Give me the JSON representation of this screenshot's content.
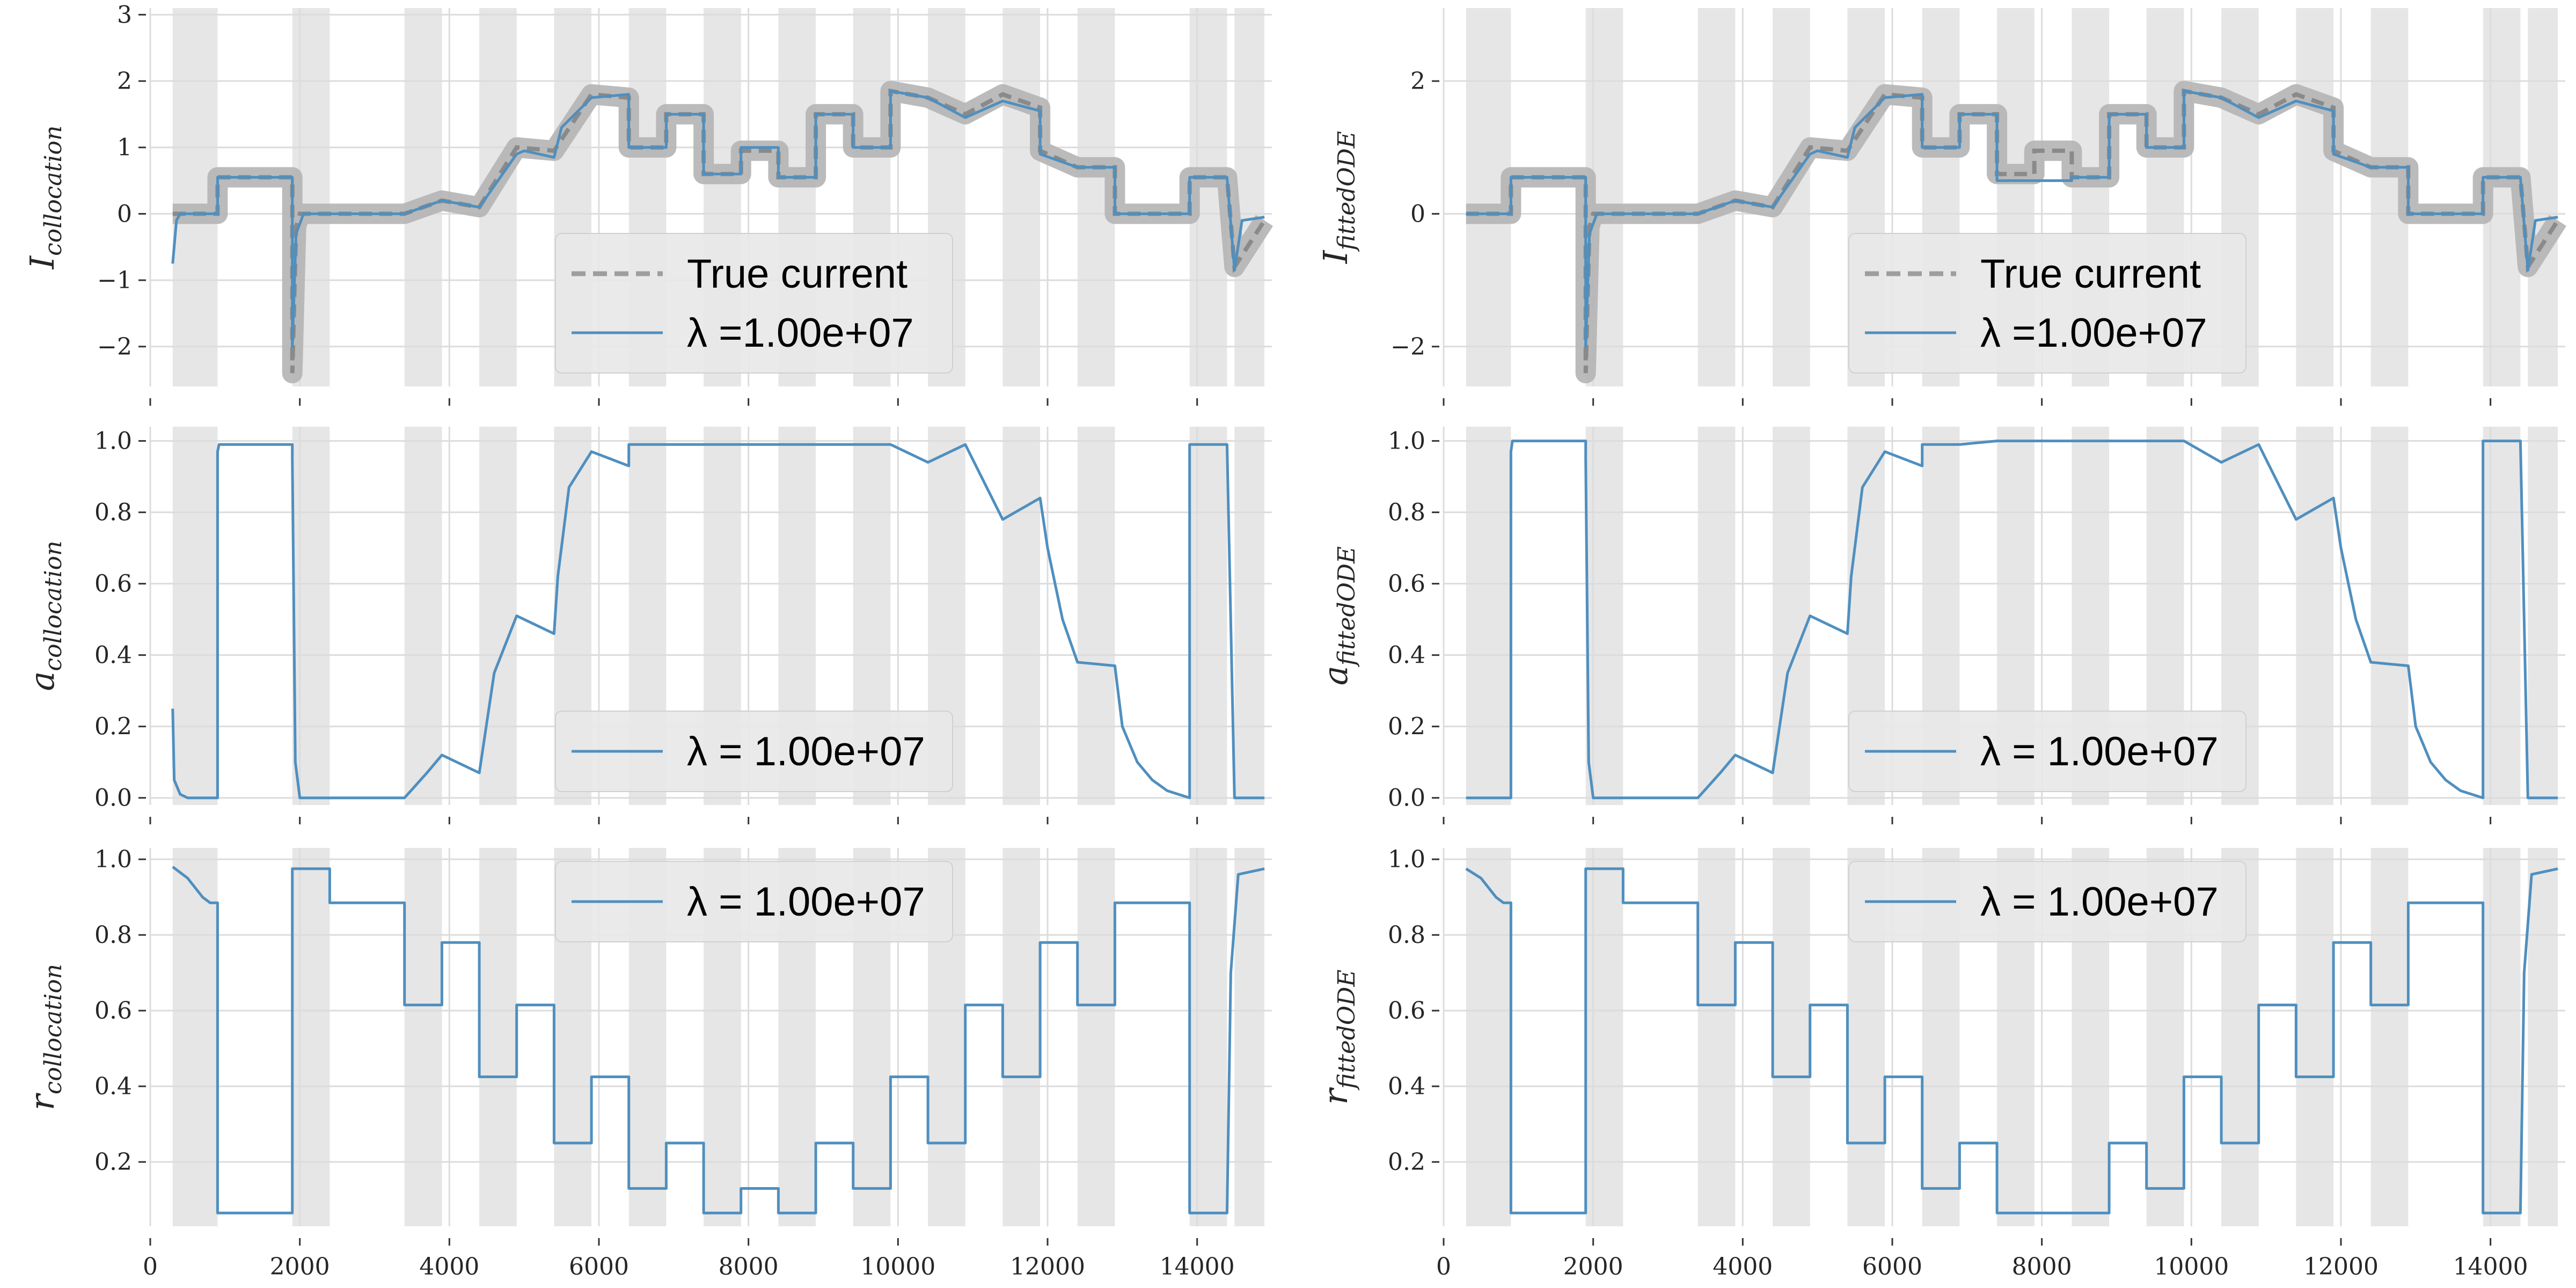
{
  "chart_data": [
    {
      "id": "I_collocation",
      "type": "line",
      "ylabel_base": "I",
      "ylabel_sub": "collocation",
      "xlim": [
        0,
        15000
      ],
      "ylim": [
        -2.6,
        3.1
      ],
      "yticks": [
        -2,
        -1,
        0,
        1,
        2,
        3
      ],
      "ytick_labels": [
        "−2",
        "−1",
        "0",
        "1",
        "2",
        "3"
      ],
      "grid": true,
      "legend": "lower-center",
      "series": [
        {
          "name": "True current",
          "style": "dashed-gray",
          "color": "#9e9e9e",
          "x": [
            300,
            900,
            900,
            1900,
            1900,
            1950,
            2000,
            2400,
            3400,
            3900,
            4400,
            4900,
            5400,
            5900,
            6400,
            6400,
            6900,
            6900,
            7400,
            7400,
            7900,
            7900,
            8400,
            8400,
            8900,
            8900,
            9400,
            9400,
            9900,
            9900,
            10400,
            10900,
            11400,
            11900,
            11900,
            12400,
            12400,
            12900,
            12900,
            13900,
            13900,
            14400,
            14500,
            14900
          ],
          "y": [
            0.0,
            0.0,
            0.55,
            0.55,
            -2.4,
            -0.2,
            0.0,
            0.0,
            0.0,
            0.2,
            0.1,
            1.0,
            0.95,
            1.8,
            1.75,
            1.0,
            1.0,
            1.5,
            1.5,
            0.6,
            0.6,
            0.95,
            0.95,
            0.55,
            0.55,
            1.5,
            1.5,
            1.0,
            1.0,
            1.85,
            1.75,
            1.5,
            1.8,
            1.6,
            0.95,
            0.7,
            0.7,
            0.7,
            0.0,
            0.0,
            0.55,
            0.55,
            -0.8,
            -0.1
          ]
        },
        {
          "name": "λ =1.00e+07",
          "style": "solid-blue",
          "color": "#4f8fbf",
          "x": [
            300,
            350,
            400,
            900,
            900,
            1900,
            1900,
            1950,
            2050,
            2400,
            3400,
            3900,
            4400,
            4900,
            5000,
            5400,
            5500,
            5900,
            6400,
            6400,
            6900,
            6900,
            7400,
            7400,
            7900,
            7900,
            8400,
            8400,
            8900,
            8900,
            9400,
            9400,
            9900,
            9900,
            10400,
            10900,
            11400,
            11900,
            11900,
            12400,
            12400,
            12900,
            12900,
            13900,
            13900,
            14400,
            14500,
            14600,
            14900
          ],
          "y": [
            -0.75,
            -0.1,
            0.0,
            0.0,
            0.55,
            0.55,
            -2.0,
            -0.3,
            0.0,
            0.0,
            0.0,
            0.2,
            0.1,
            0.9,
            0.95,
            0.85,
            1.3,
            1.75,
            1.8,
            1.0,
            1.0,
            1.5,
            1.5,
            0.6,
            0.6,
            1.0,
            1.0,
            0.55,
            0.55,
            1.5,
            1.5,
            1.0,
            1.0,
            1.85,
            1.75,
            1.45,
            1.7,
            1.55,
            0.9,
            0.7,
            0.7,
            0.7,
            0.0,
            0.0,
            0.55,
            0.55,
            -0.85,
            -0.1,
            -0.05
          ]
        }
      ]
    },
    {
      "id": "I_fittedODE",
      "type": "line",
      "ylabel_base": "I",
      "ylabel_sub": "fittedODE",
      "xlim": [
        0,
        15000
      ],
      "ylim": [
        -2.6,
        3.1
      ],
      "yticks": [
        -2,
        0,
        2
      ],
      "ytick_labels": [
        "−2",
        "0",
        "2"
      ],
      "grid": true,
      "legend": "lower-center",
      "series": [
        {
          "name": "True current",
          "style": "dashed-gray",
          "color": "#9e9e9e",
          "x": [
            300,
            900,
            900,
            1900,
            1900,
            1950,
            2000,
            2400,
            3400,
            3900,
            4400,
            4900,
            5400,
            5900,
            6400,
            6400,
            6900,
            6900,
            7400,
            7400,
            7900,
            7900,
            8400,
            8400,
            8900,
            8900,
            9400,
            9400,
            9900,
            9900,
            10400,
            10900,
            11400,
            11900,
            11900,
            12400,
            12400,
            12900,
            12900,
            13900,
            13900,
            14400,
            14500,
            14900
          ],
          "y": [
            0.0,
            0.0,
            0.55,
            0.55,
            -2.4,
            -0.2,
            0.0,
            0.0,
            0.0,
            0.2,
            0.1,
            1.0,
            0.95,
            1.8,
            1.75,
            1.0,
            1.0,
            1.5,
            1.5,
            0.6,
            0.6,
            0.95,
            0.95,
            0.55,
            0.55,
            1.5,
            1.5,
            1.0,
            1.0,
            1.85,
            1.75,
            1.5,
            1.8,
            1.6,
            0.95,
            0.7,
            0.7,
            0.7,
            0.0,
            0.0,
            0.55,
            0.55,
            -0.8,
            -0.1
          ]
        },
        {
          "name": "λ =1.00e+07",
          "style": "solid-blue",
          "color": "#4f8fbf",
          "x": [
            300,
            900,
            900,
            1900,
            1900,
            1950,
            2050,
            2400,
            3400,
            3900,
            4400,
            4900,
            5000,
            5400,
            5500,
            5900,
            6400,
            6400,
            6900,
            6900,
            7400,
            7400,
            7900,
            7900,
            8400,
            8400,
            8900,
            8900,
            9400,
            9400,
            9900,
            9900,
            10400,
            10900,
            11400,
            11900,
            11900,
            12400,
            12400,
            12900,
            12900,
            13900,
            13900,
            14400,
            14500,
            14600,
            14900
          ],
          "y": [
            0.0,
            0.0,
            0.55,
            0.55,
            -2.0,
            -0.3,
            0.0,
            0.0,
            0.0,
            0.2,
            0.1,
            0.9,
            0.95,
            0.85,
            1.3,
            1.75,
            1.8,
            1.0,
            1.0,
            1.5,
            1.5,
            0.5,
            0.5,
            0.5,
            0.5,
            0.55,
            0.55,
            1.5,
            1.5,
            1.0,
            1.0,
            1.85,
            1.75,
            1.45,
            1.7,
            1.55,
            0.9,
            0.7,
            0.7,
            0.7,
            0.0,
            0.0,
            0.55,
            0.55,
            -0.85,
            -0.1,
            -0.05
          ]
        }
      ]
    },
    {
      "id": "a_collocation",
      "type": "line",
      "ylabel_base": "a",
      "ylabel_sub": "collocation",
      "xlim": [
        0,
        15000
      ],
      "ylim": [
        -0.02,
        1.04
      ],
      "yticks": [
        0.0,
        0.2,
        0.4,
        0.6,
        0.8,
        1.0
      ],
      "ytick_labels": [
        "0.0",
        "0.2",
        "0.4",
        "0.6",
        "0.8",
        "1.0"
      ],
      "grid": true,
      "legend": "lower-center",
      "series": [
        {
          "name": "λ = 1.00e+07",
          "style": "solid-blue",
          "color": "#4f8fbf",
          "x": [
            300,
            320,
            400,
            500,
            900,
            900,
            920,
            1900,
            1900,
            1940,
            2000,
            2400,
            3400,
            3700,
            3900,
            4400,
            4600,
            4900,
            5400,
            5450,
            5600,
            5900,
            6400,
            6400,
            6900,
            7400,
            7900,
            8400,
            8900,
            9400,
            9900,
            10400,
            10900,
            11400,
            11900,
            12000,
            12200,
            12400,
            12900,
            13000,
            13200,
            13400,
            13600,
            13900,
            13900,
            14400,
            14500,
            14900
          ],
          "y": [
            0.25,
            0.05,
            0.01,
            0.0,
            0.0,
            0.97,
            0.99,
            0.99,
            0.95,
            0.1,
            0.0,
            0.0,
            0.0,
            0.07,
            0.12,
            0.07,
            0.35,
            0.51,
            0.46,
            0.62,
            0.87,
            0.97,
            0.93,
            0.99,
            0.99,
            0.99,
            0.99,
            0.99,
            0.99,
            0.99,
            0.99,
            0.94,
            0.99,
            0.78,
            0.84,
            0.7,
            0.5,
            0.38,
            0.37,
            0.2,
            0.1,
            0.05,
            0.02,
            0.0,
            0.99,
            0.99,
            0.0,
            0.0
          ]
        }
      ]
    },
    {
      "id": "a_fittedODE",
      "type": "line",
      "ylabel_base": "a",
      "ylabel_sub": "fittedODE",
      "xlim": [
        0,
        15000
      ],
      "ylim": [
        -0.02,
        1.04
      ],
      "yticks": [
        0.0,
        0.2,
        0.4,
        0.6,
        0.8,
        1.0
      ],
      "ytick_labels": [
        "0.0",
        "0.2",
        "0.4",
        "0.6",
        "0.8",
        "1.0"
      ],
      "grid": true,
      "legend": "lower-center",
      "series": [
        {
          "name": "λ = 1.00e+07",
          "style": "solid-blue",
          "color": "#4f8fbf",
          "x": [
            300,
            900,
            900,
            920,
            1900,
            1900,
            1940,
            2000,
            2400,
            3400,
            3700,
            3900,
            4400,
            4600,
            4900,
            5400,
            5450,
            5600,
            5900,
            6400,
            6400,
            6900,
            7400,
            7900,
            8400,
            8900,
            9400,
            9900,
            10400,
            10900,
            11400,
            11900,
            12000,
            12200,
            12400,
            12900,
            13000,
            13200,
            13400,
            13600,
            13900,
            13900,
            14400,
            14500,
            14900
          ],
          "y": [
            0.0,
            0.0,
            0.97,
            1.0,
            1.0,
            0.95,
            0.1,
            0.0,
            0.0,
            0.0,
            0.07,
            0.12,
            0.07,
            0.35,
            0.51,
            0.46,
            0.62,
            0.87,
            0.97,
            0.93,
            0.99,
            0.99,
            1.0,
            1.0,
            1.0,
            1.0,
            1.0,
            1.0,
            0.94,
            0.99,
            0.78,
            0.84,
            0.7,
            0.5,
            0.38,
            0.37,
            0.2,
            0.1,
            0.05,
            0.02,
            0.0,
            1.0,
            1.0,
            0.0,
            0.0
          ]
        }
      ]
    },
    {
      "id": "r_collocation",
      "type": "line",
      "ylabel_base": "r",
      "ylabel_sub": "collocation",
      "xlim": [
        0,
        15000
      ],
      "ylim": [
        0.03,
        1.03
      ],
      "yticks": [
        0.2,
        0.4,
        0.6,
        0.8,
        1.0
      ],
      "ytick_labels": [
        "0.2",
        "0.4",
        "0.6",
        "0.8",
        "1.0"
      ],
      "xticks": [
        0,
        2000,
        4000,
        6000,
        8000,
        10000,
        12000,
        14000
      ],
      "xtick_labels": [
        "0",
        "2000",
        "4000",
        "6000",
        "8000",
        "10000",
        "12000",
        "14000"
      ],
      "grid": true,
      "legend": "upper-center",
      "series": [
        {
          "name": "λ = 1.00e+07",
          "style": "solid-blue",
          "color": "#4f8fbf",
          "x": [
            300,
            500,
            700,
            800,
            900,
            900,
            1900,
            1900,
            2400,
            2400,
            3400,
            3400,
            3900,
            3900,
            4400,
            4400,
            4900,
            4900,
            5400,
            5400,
            5900,
            5900,
            6400,
            6400,
            6900,
            6900,
            7400,
            7400,
            7900,
            7900,
            8400,
            8400,
            8900,
            8900,
            9400,
            9400,
            9900,
            9900,
            10400,
            10400,
            10900,
            10900,
            11400,
            11400,
            11900,
            11900,
            12400,
            12400,
            12900,
            12900,
            13900,
            13900,
            14400,
            14450,
            14550,
            14900
          ],
          "y": [
            0.98,
            0.95,
            0.9,
            0.885,
            0.885,
            0.065,
            0.065,
            0.975,
            0.975,
            0.885,
            0.885,
            0.615,
            0.615,
            0.78,
            0.78,
            0.425,
            0.425,
            0.615,
            0.615,
            0.25,
            0.25,
            0.425,
            0.425,
            0.13,
            0.13,
            0.25,
            0.25,
            0.065,
            0.065,
            0.13,
            0.13,
            0.065,
            0.065,
            0.25,
            0.25,
            0.13,
            0.13,
            0.425,
            0.425,
            0.25,
            0.25,
            0.615,
            0.615,
            0.425,
            0.425,
            0.78,
            0.78,
            0.615,
            0.615,
            0.885,
            0.885,
            0.065,
            0.065,
            0.7,
            0.96,
            0.975
          ]
        }
      ]
    },
    {
      "id": "r_fittedODE",
      "type": "line",
      "ylabel_base": "r",
      "ylabel_sub": "fittedODE",
      "xlim": [
        0,
        15000
      ],
      "ylim": [
        0.03,
        1.03
      ],
      "yticks": [
        0.2,
        0.4,
        0.6,
        0.8,
        1.0
      ],
      "ytick_labels": [
        "0.2",
        "0.4",
        "0.6",
        "0.8",
        "1.0"
      ],
      "xticks": [
        0,
        2000,
        4000,
        6000,
        8000,
        10000,
        12000,
        14000
      ],
      "xtick_labels": [
        "0",
        "2000",
        "4000",
        "6000",
        "8000",
        "10000",
        "12000",
        "14000"
      ],
      "grid": true,
      "legend": "upper-center",
      "series": [
        {
          "name": "λ = 1.00e+07",
          "style": "solid-blue",
          "color": "#4f8fbf",
          "x": [
            300,
            500,
            700,
            800,
            900,
            900,
            1900,
            1900,
            2400,
            2400,
            3400,
            3400,
            3900,
            3900,
            4400,
            4400,
            4900,
            4900,
            5400,
            5400,
            5900,
            5900,
            6400,
            6400,
            6900,
            6900,
            7400,
            7400,
            8900,
            8900,
            9400,
            9400,
            9900,
            9900,
            10400,
            10400,
            10900,
            10900,
            11400,
            11400,
            11900,
            11900,
            12400,
            12400,
            12900,
            12900,
            13900,
            13900,
            14400,
            14450,
            14550,
            14900
          ],
          "y": [
            0.975,
            0.95,
            0.9,
            0.885,
            0.885,
            0.065,
            0.065,
            0.975,
            0.975,
            0.885,
            0.885,
            0.615,
            0.615,
            0.78,
            0.78,
            0.425,
            0.425,
            0.615,
            0.615,
            0.25,
            0.25,
            0.425,
            0.425,
            0.13,
            0.13,
            0.25,
            0.25,
            0.065,
            0.065,
            0.25,
            0.25,
            0.13,
            0.13,
            0.425,
            0.425,
            0.25,
            0.25,
            0.615,
            0.615,
            0.425,
            0.425,
            0.78,
            0.78,
            0.615,
            0.615,
            0.885,
            0.885,
            0.065,
            0.065,
            0.7,
            0.96,
            0.975
          ]
        }
      ]
    }
  ],
  "shaded_intervals": [
    [
      300,
      900
    ],
    [
      1900,
      2400
    ],
    [
      3400,
      3900
    ],
    [
      4400,
      4900
    ],
    [
      5400,
      5900
    ],
    [
      6400,
      6900
    ],
    [
      7400,
      7900
    ],
    [
      8400,
      8900
    ],
    [
      9400,
      9900
    ],
    [
      10400,
      10900
    ],
    [
      11400,
      11900
    ],
    [
      12400,
      12900
    ],
    [
      13900,
      14400
    ],
    [
      14500,
      14900
    ]
  ],
  "colors": {
    "shade": "#e6e6e6",
    "grid": "#dcdcdc",
    "true_current": "#9e9e9e",
    "fit": "#4f8fbf",
    "legend_bg": "#e8e8e8"
  }
}
